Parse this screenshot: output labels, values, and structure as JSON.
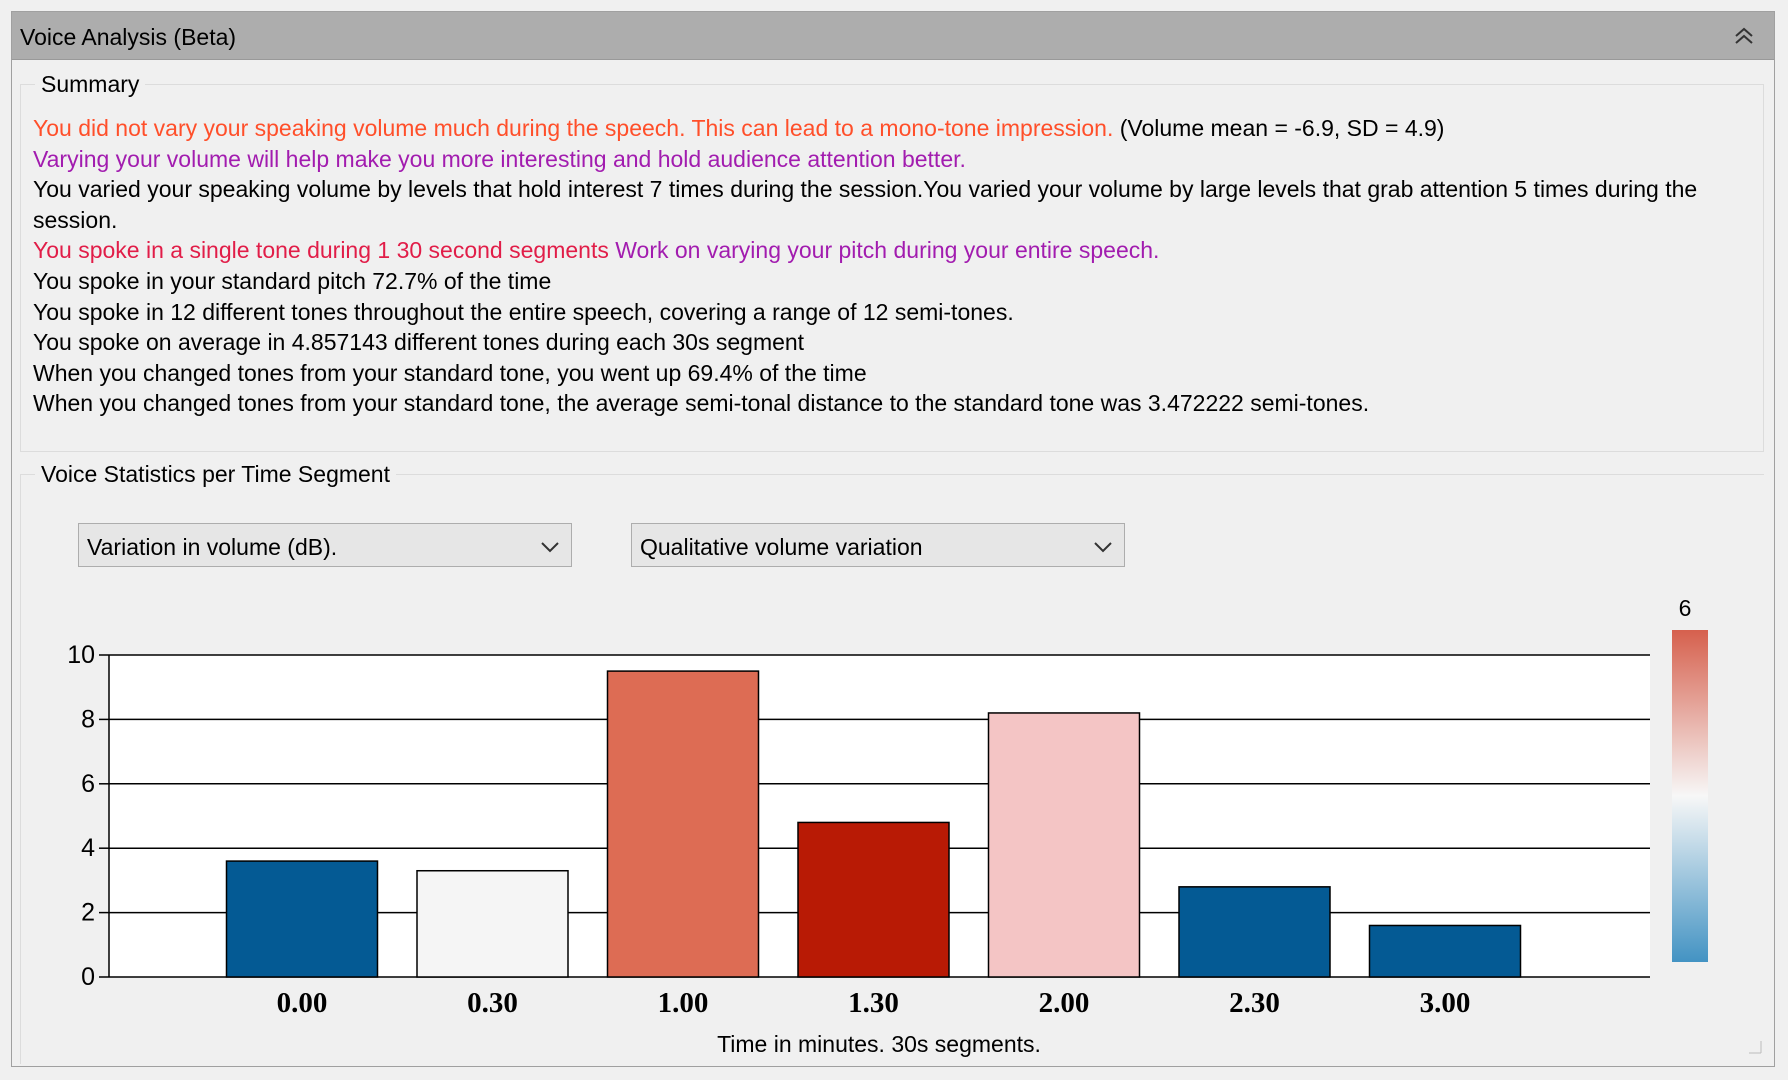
{
  "panel": {
    "title": "Voice Analysis (Beta)",
    "collapse_icon": "double-chevron-up-icon"
  },
  "summary": {
    "legend": "Summary",
    "line1_warning": "You did not vary your speaking volume much during the speech. This can lead to a mono-tone impression.",
    "line1_stats": " (Volume mean = -6.9, SD = 4.9)",
    "line2": "Varying your volume will help make you more interesting and hold audience attention better.",
    "line3": "You varied your speaking volume by levels that hold interest 7 times during the session.You varied your volume by large levels that grab attention 5 times during the session.",
    "line4_part1": "You spoke in a single tone during 1 30 second segments",
    "line4_part2": " Work on varying your pitch during your entire speech.",
    "line5": "You spoke in your standard pitch 72.7% of the time",
    "line6": "You spoke in 12 different tones throughout the entire speech, covering a range of 12 semi-tones.",
    "line7": "You spoke on average in 4.857143 different tones during each 30s segment",
    "line8": "When you changed tones from your standard tone, you went up 69.4% of the time",
    "line9": "When you changed tones from your standard tone, the average semi-tonal distance to the standard tone was 3.472222 semi-tones."
  },
  "stats": {
    "legend": "Voice Statistics per Time Segment",
    "metric_dropdown": "Variation in volume (dB).",
    "color_dropdown": "Qualitative volume variation",
    "dropdown_icon": "chevron-down-icon"
  },
  "chart_data": {
    "type": "bar",
    "categories": [
      "0.00",
      "0.30",
      "1.00",
      "1.30",
      "2.00",
      "2.30",
      "3.00"
    ],
    "values": [
      3.6,
      3.3,
      9.5,
      4.8,
      8.2,
      2.8,
      1.6
    ],
    "bar_colors": [
      "#045a94",
      "#f5f5f5",
      "#dd6c54",
      "#b81a05",
      "#f4c5c5",
      "#045a94",
      "#045a94"
    ],
    "xlabel": "Time in minutes. 30s segments.",
    "ylabel": "",
    "ylim": [
      0,
      10
    ],
    "yticks": [
      0,
      2,
      4,
      6,
      8,
      10
    ],
    "grid": true,
    "colorbar": {
      "max_label": "6",
      "colors": [
        "#d6604d",
        "#f7f7f7",
        "#4393c3"
      ]
    }
  }
}
